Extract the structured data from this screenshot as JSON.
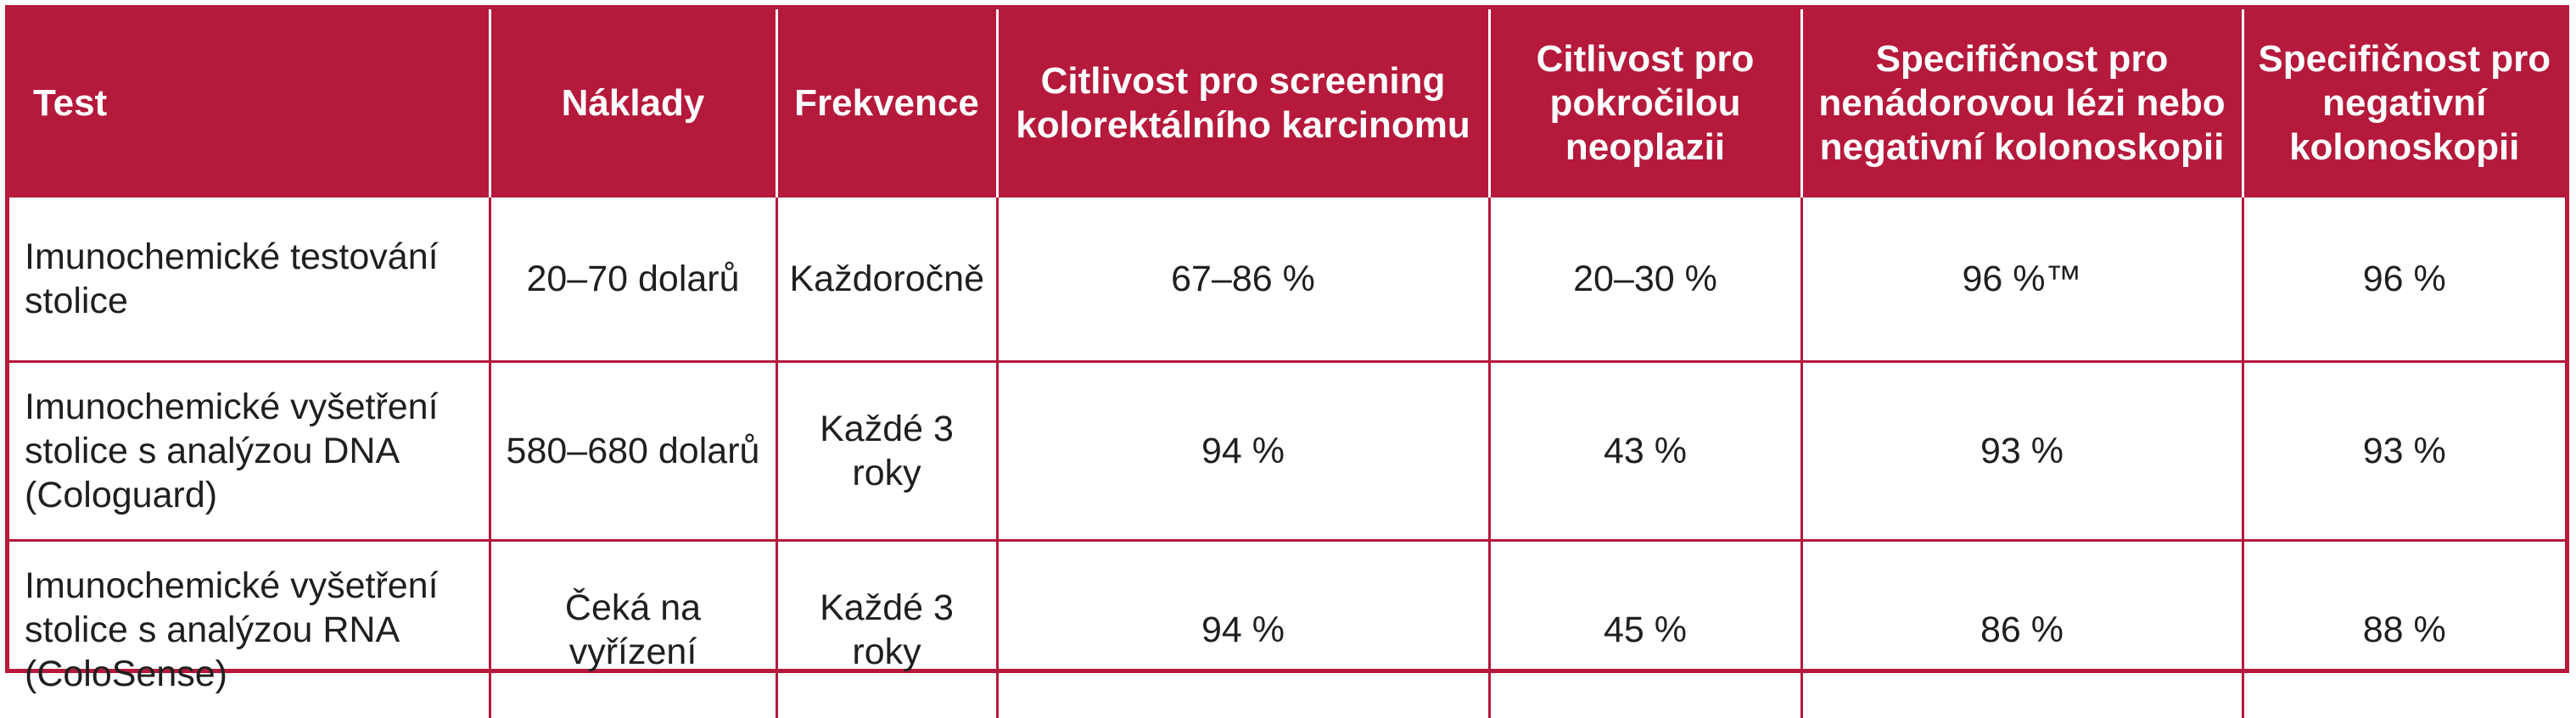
{
  "table": {
    "headers": [
      "Test",
      "Náklady",
      "Frekvence",
      "Citlivost pro screening kolorektálního karcinomu",
      "Citlivost pro pokročilou neoplazii",
      "Specifičnost pro nenádorovou lézi nebo negativní kolonoskopii",
      "Specifičnost pro negativní kolonoskopii"
    ],
    "rows": [
      [
        "Imunochemické testování stolice",
        "20–70 dolarů",
        "Každoročně",
        "67–86 %",
        "20–30 %",
        "96 %™",
        "96 %"
      ],
      [
        "Imunochemické vyšetření stolice s analýzou DNA (Cologuard)",
        "580–680 dolarů",
        "Každé 3 roky",
        "94 %",
        "43 %",
        "93 %",
        "93 %"
      ],
      [
        "Imunochemické vyšetření stolice s analýzou RNA (ColoSense)",
        "Čeká na vyřízení",
        "Každé 3 roky",
        "94 %",
        "45 %",
        "86 %",
        "88 %"
      ]
    ]
  },
  "colors": {
    "header_background": "#b5193b",
    "header_text": "#ffffff",
    "grid_lines": "#b5193b",
    "body_text": "#1f1f1f"
  }
}
